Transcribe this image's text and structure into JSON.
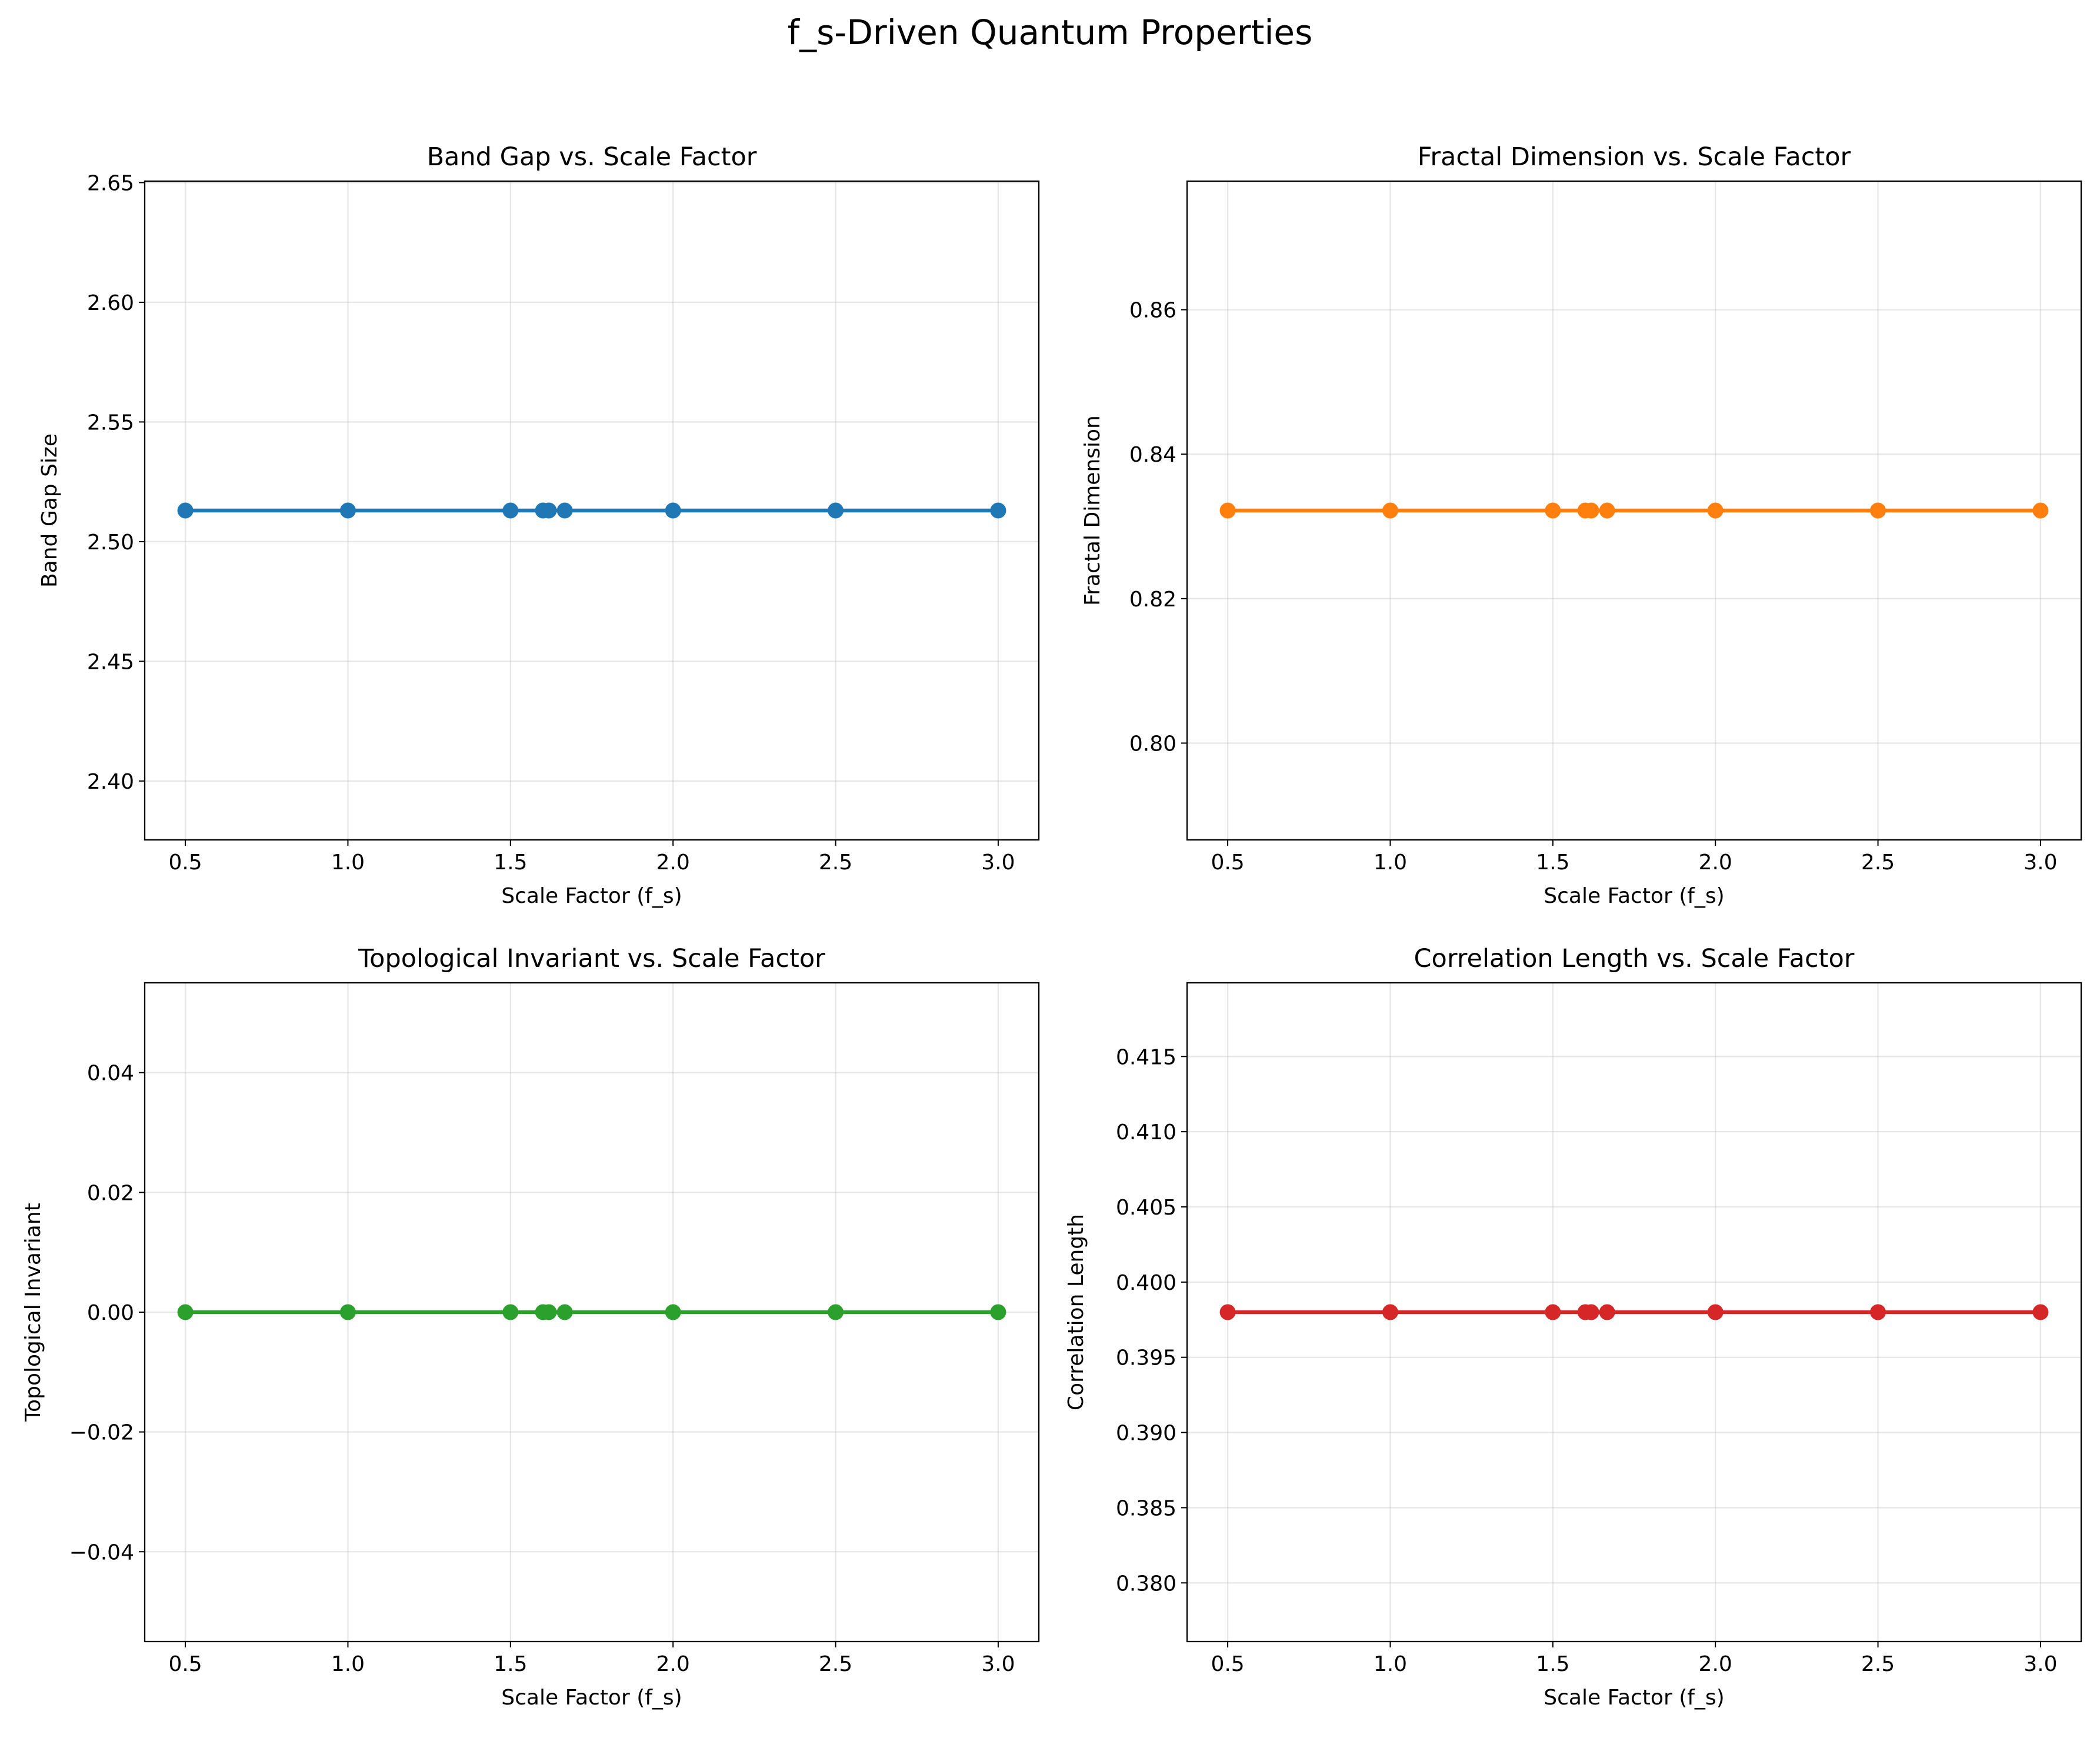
{
  "figure": {
    "suptitle": "f_s-Driven Quantum Properties"
  },
  "chart_data": [
    {
      "type": "line",
      "title": "Band Gap vs. Scale Factor",
      "xlabel": "Scale Factor (f_s)",
      "ylabel": "Band Gap Size",
      "x": [
        0.5,
        1.0,
        1.5,
        1.6,
        1.618,
        1.667,
        2.0,
        2.5,
        3.0
      ],
      "series": [
        {
          "values": [
            2.513,
            2.513,
            2.513,
            2.513,
            2.513,
            2.513,
            2.513,
            2.513,
            2.513
          ],
          "color": "#1f77b4"
        }
      ],
      "xlim": [
        0.375,
        3.125
      ],
      "ylim": [
        2.3754,
        2.6506
      ],
      "xticks": [
        0.5,
        1.0,
        1.5,
        2.0,
        2.5,
        3.0
      ],
      "xtick_labels": [
        "0.5",
        "1.0",
        "1.5",
        "2.0",
        "2.5",
        "3.0"
      ],
      "yticks": [
        2.4,
        2.45,
        2.5,
        2.55,
        2.6,
        2.65
      ],
      "ytick_labels": [
        "2.40",
        "2.45",
        "2.50",
        "2.55",
        "2.60",
        "2.65"
      ],
      "grid": true
    },
    {
      "type": "line",
      "title": "Fractal Dimension vs. Scale Factor",
      "xlabel": "Scale Factor (f_s)",
      "ylabel": "Fractal Dimension",
      "x": [
        0.5,
        1.0,
        1.5,
        1.6,
        1.618,
        1.667,
        2.0,
        2.5,
        3.0
      ],
      "series": [
        {
          "values": [
            0.8322,
            0.8322,
            0.8322,
            0.8322,
            0.8322,
            0.8322,
            0.8322,
            0.8322,
            0.8322
          ],
          "color": "#ff7f0e"
        }
      ],
      "xlim": [
        0.375,
        3.125
      ],
      "ylim": [
        0.7866,
        0.8778
      ],
      "xticks": [
        0.5,
        1.0,
        1.5,
        2.0,
        2.5,
        3.0
      ],
      "xtick_labels": [
        "0.5",
        "1.0",
        "1.5",
        "2.0",
        "2.5",
        "3.0"
      ],
      "yticks": [
        0.8,
        0.82,
        0.84,
        0.86
      ],
      "ytick_labels": [
        "0.80",
        "0.82",
        "0.84",
        "0.86"
      ],
      "grid": true
    },
    {
      "type": "line",
      "title": "Topological Invariant vs. Scale Factor",
      "xlabel": "Scale Factor (f_s)",
      "ylabel": "Topological Invariant",
      "x": [
        0.5,
        1.0,
        1.5,
        1.6,
        1.618,
        1.667,
        2.0,
        2.5,
        3.0
      ],
      "series": [
        {
          "values": [
            0.0,
            0.0,
            0.0,
            0.0,
            0.0,
            0.0,
            0.0,
            0.0,
            0.0
          ],
          "color": "#2ca02c"
        }
      ],
      "xlim": [
        0.375,
        3.125
      ],
      "ylim": [
        -0.055,
        0.055
      ],
      "xticks": [
        0.5,
        1.0,
        1.5,
        2.0,
        2.5,
        3.0
      ],
      "xtick_labels": [
        "0.5",
        "1.0",
        "1.5",
        "2.0",
        "2.5",
        "3.0"
      ],
      "yticks": [
        -0.04,
        -0.02,
        0.0,
        0.02,
        0.04
      ],
      "ytick_labels": [
        "−0.04",
        "−0.02",
        "0.00",
        "0.02",
        "0.04"
      ],
      "grid": true
    },
    {
      "type": "line",
      "title": "Correlation Length vs. Scale Factor",
      "xlabel": "Scale Factor (f_s)",
      "ylabel": "Correlation Length",
      "x": [
        0.5,
        1.0,
        1.5,
        1.6,
        1.618,
        1.667,
        2.0,
        2.5,
        3.0
      ],
      "series": [
        {
          "values": [
            0.398,
            0.398,
            0.398,
            0.398,
            0.398,
            0.398,
            0.398,
            0.398,
            0.398
          ],
          "color": "#d62728"
        }
      ],
      "xlim": [
        0.375,
        3.125
      ],
      "ylim": [
        0.3761,
        0.4199
      ],
      "xticks": [
        0.5,
        1.0,
        1.5,
        2.0,
        2.5,
        3.0
      ],
      "xtick_labels": [
        "0.5",
        "1.0",
        "1.5",
        "2.0",
        "2.5",
        "3.0"
      ],
      "yticks": [
        0.38,
        0.385,
        0.39,
        0.395,
        0.4,
        0.405,
        0.41,
        0.415
      ],
      "ytick_labels": [
        "0.380",
        "0.385",
        "0.390",
        "0.395",
        "0.400",
        "0.405",
        "0.410",
        "0.415"
      ],
      "grid": true
    }
  ]
}
